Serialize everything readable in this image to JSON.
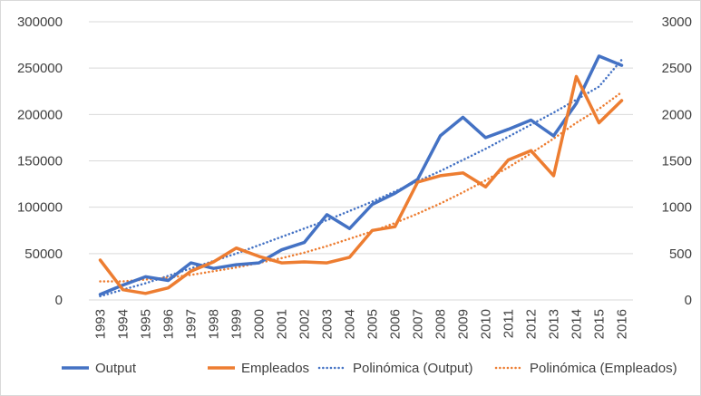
{
  "chart_data": {
    "type": "line",
    "categories": [
      "1993",
      "1994",
      "1995",
      "1996",
      "1997",
      "1998",
      "1999",
      "2000",
      "2001",
      "2002",
      "2003",
      "2004",
      "2005",
      "2006",
      "2007",
      "2008",
      "2009",
      "2010",
      "2011",
      "2012",
      "2013",
      "2014",
      "2015",
      "2016"
    ],
    "left_axis": {
      "ylim": [
        0,
        300000
      ],
      "ticks": [
        "0",
        "50000",
        "100000",
        "150000",
        "200000",
        "250000",
        "300000"
      ]
    },
    "right_axis": {
      "ylim": [
        0,
        3000
      ],
      "ticks": [
        "0",
        "500",
        "1000",
        "1500",
        "2000",
        "2500",
        "3000"
      ]
    },
    "grid": true,
    "legend_position": "bottom",
    "series": [
      {
        "name": "Output",
        "axis": "left",
        "color": "#4472C4",
        "style": "solid",
        "values": [
          6000,
          16000,
          25000,
          21000,
          40000,
          34000,
          38000,
          40000,
          54000,
          62000,
          92000,
          77000,
          103000,
          115000,
          130000,
          177000,
          197000,
          175000,
          184000,
          194000,
          177000,
          212000,
          263000,
          253000
        ]
      },
      {
        "name": "Empleados",
        "axis": "right",
        "color": "#ED7D31",
        "style": "solid",
        "values": [
          430,
          110,
          70,
          130,
          310,
          410,
          560,
          470,
          400,
          410,
          400,
          460,
          750,
          790,
          1270,
          1340,
          1370,
          1220,
          1510,
          1610,
          1340,
          2410,
          1910,
          2150
        ]
      },
      {
        "name": "Polinómica (Output)",
        "axis": "left",
        "color": "#4472C4",
        "style": "dotted",
        "values": [
          4000,
          11000,
          18000,
          26000,
          34000,
          42000,
          50000,
          59000,
          68000,
          77000,
          86000,
          96000,
          106000,
          117000,
          128000,
          139000,
          151000,
          163000,
          176000,
          189000,
          202000,
          216000,
          230000,
          259000
        ]
      },
      {
        "name": "Polinómica (Empleados)",
        "axis": "right",
        "color": "#ED7D31",
        "style": "dotted",
        "values": [
          200,
          200,
          220,
          240,
          270,
          310,
          350,
          400,
          450,
          510,
          580,
          660,
          740,
          830,
          930,
          1040,
          1160,
          1290,
          1430,
          1580,
          1740,
          1910,
          2060,
          2240
        ]
      }
    ]
  }
}
